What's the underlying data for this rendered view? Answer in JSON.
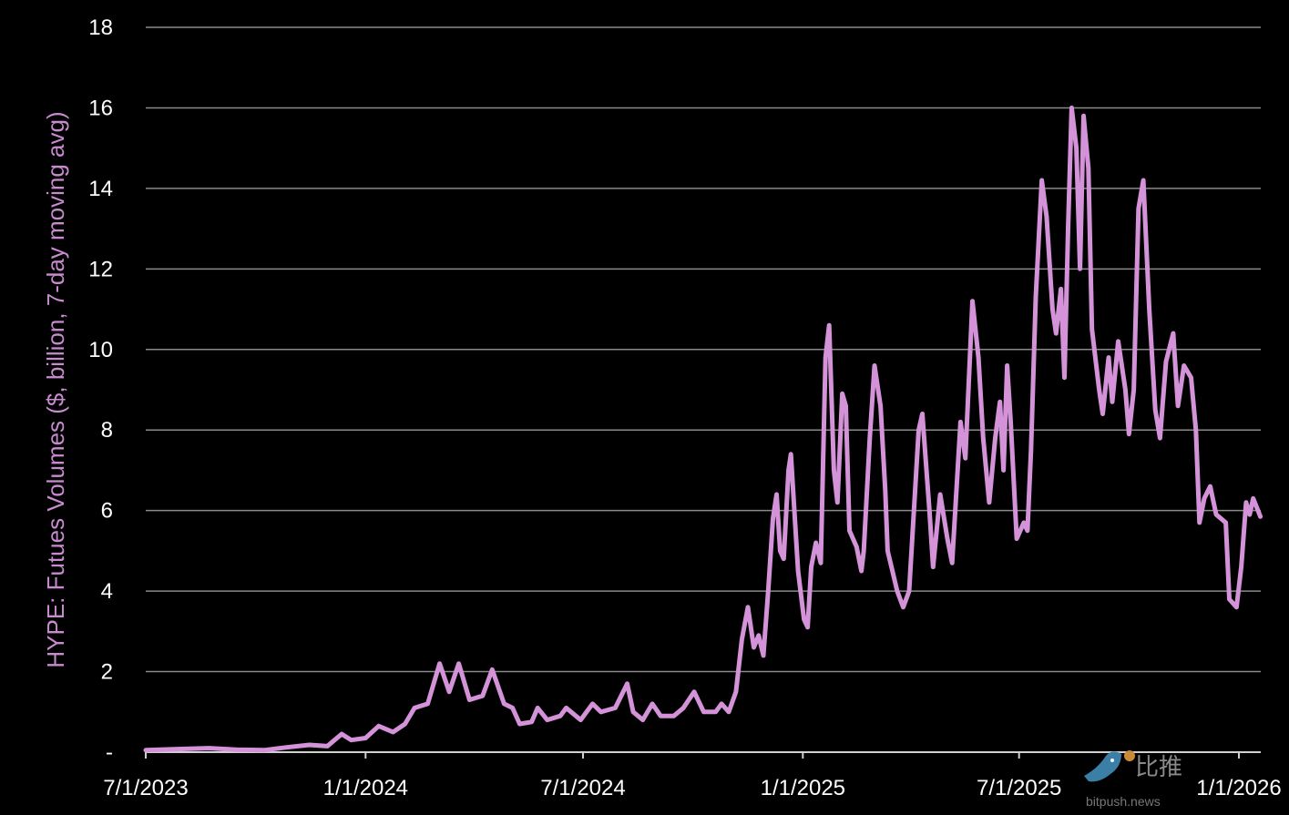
{
  "chart_data": {
    "type": "line",
    "title": "",
    "xlabel": "",
    "ylabel": "HYPE: Futues Volumes ($, billion, 7-day moving avg)",
    "ylim": [
      0,
      18
    ],
    "xlim": [
      "2023-07-01",
      "2026-01-01"
    ],
    "grid": true,
    "yticks": [
      {
        "value": 0,
        "label": "-"
      },
      {
        "value": 2,
        "label": "2"
      },
      {
        "value": 4,
        "label": "4"
      },
      {
        "value": 6,
        "label": "6"
      },
      {
        "value": 8,
        "label": "8"
      },
      {
        "value": 10,
        "label": "10"
      },
      {
        "value": 12,
        "label": "12"
      },
      {
        "value": 14,
        "label": "14"
      },
      {
        "value": 16,
        "label": "16"
      },
      {
        "value": 18,
        "label": "18"
      }
    ],
    "xticks": [
      {
        "value": "2023-07-01",
        "label": "7/1/2023"
      },
      {
        "value": "2024-01-01",
        "label": "1/1/2024"
      },
      {
        "value": "2024-07-01",
        "label": "7/1/2024"
      },
      {
        "value": "2025-01-01",
        "label": "1/1/2025"
      },
      {
        "value": "2025-07-01",
        "label": "7/1/2025"
      },
      {
        "value": "2026-01-01",
        "label": "1/1/2026"
      }
    ],
    "colors": {
      "line": "#d493d8",
      "ylabel": "#c98bcf",
      "grid": "#8a8a8a",
      "background": "#000000",
      "text": "#ffffff"
    },
    "series": [
      {
        "points": [
          [
            "2023-07-01",
            0.05
          ],
          [
            "2023-07-31",
            0.08
          ],
          [
            "2023-08-23",
            0.1
          ],
          [
            "2023-09-15",
            0.06
          ],
          [
            "2023-10-08",
            0.05
          ],
          [
            "2023-10-27",
            0.12
          ],
          [
            "2023-11-15",
            0.18
          ],
          [
            "2023-11-30",
            0.15
          ],
          [
            "2023-12-12",
            0.45
          ],
          [
            "2023-12-20",
            0.3
          ],
          [
            "2024-01-01",
            0.35
          ],
          [
            "2024-01-12",
            0.65
          ],
          [
            "2024-01-24",
            0.5
          ],
          [
            "2024-02-03",
            0.7
          ],
          [
            "2024-02-11",
            1.1
          ],
          [
            "2024-02-22",
            1.2
          ],
          [
            "2024-03-03",
            2.2
          ],
          [
            "2024-03-11",
            1.5
          ],
          [
            "2024-03-19",
            2.2
          ],
          [
            "2024-03-28",
            1.3
          ],
          [
            "2024-04-08",
            1.4
          ],
          [
            "2024-04-16",
            2.05
          ],
          [
            "2024-04-26",
            1.2
          ],
          [
            "2024-05-03",
            1.1
          ],
          [
            "2024-05-09",
            0.7
          ],
          [
            "2024-05-19",
            0.75
          ],
          [
            "2024-05-24",
            1.1
          ],
          [
            "2024-06-01",
            0.8
          ],
          [
            "2024-06-12",
            0.9
          ],
          [
            "2024-06-17",
            1.1
          ],
          [
            "2024-06-29",
            0.8
          ],
          [
            "2024-07-09",
            1.2
          ],
          [
            "2024-07-16",
            1.0
          ],
          [
            "2024-07-28",
            1.1
          ],
          [
            "2024-08-07",
            1.7
          ],
          [
            "2024-08-12",
            1.0
          ],
          [
            "2024-08-20",
            0.8
          ],
          [
            "2024-08-28",
            1.2
          ],
          [
            "2024-09-04",
            0.9
          ],
          [
            "2024-09-15",
            0.9
          ],
          [
            "2024-09-23",
            1.1
          ],
          [
            "2024-10-02",
            1.5
          ],
          [
            "2024-10-10",
            1.0
          ],
          [
            "2024-10-20",
            1.0
          ],
          [
            "2024-10-25",
            1.2
          ],
          [
            "2024-10-31",
            1.0
          ],
          [
            "2024-11-06",
            1.5
          ],
          [
            "2024-11-11",
            2.8
          ],
          [
            "2024-11-16",
            3.6
          ],
          [
            "2024-11-21",
            2.6
          ],
          [
            "2024-11-25",
            2.9
          ],
          [
            "2024-11-29",
            2.4
          ],
          [
            "2024-12-03",
            4.0
          ],
          [
            "2024-12-07",
            5.8
          ],
          [
            "2024-12-10",
            6.4
          ],
          [
            "2024-12-13",
            5.0
          ],
          [
            "2024-12-16",
            4.8
          ],
          [
            "2024-12-20",
            7.0
          ],
          [
            "2024-12-22",
            7.4
          ],
          [
            "2024-12-28",
            4.5
          ],
          [
            "2025-01-02",
            3.3
          ],
          [
            "2025-01-05",
            3.1
          ],
          [
            "2025-01-08",
            4.6
          ],
          [
            "2025-01-12",
            5.2
          ],
          [
            "2025-01-16",
            4.7
          ],
          [
            "2025-01-20",
            9.8
          ],
          [
            "2025-01-23",
            10.6
          ],
          [
            "2025-01-27",
            7.0
          ],
          [
            "2025-01-30",
            6.2
          ],
          [
            "2025-02-03",
            8.9
          ],
          [
            "2025-02-06",
            8.6
          ],
          [
            "2025-02-09",
            5.5
          ],
          [
            "2025-02-15",
            5.1
          ],
          [
            "2025-02-19",
            4.5
          ],
          [
            "2025-02-21",
            5.0
          ],
          [
            "2025-02-26",
            7.8
          ],
          [
            "2025-03-02",
            9.6
          ],
          [
            "2025-03-07",
            8.6
          ],
          [
            "2025-03-11",
            6.5
          ],
          [
            "2025-03-13",
            5.0
          ],
          [
            "2025-03-21",
            4.0
          ],
          [
            "2025-03-26",
            3.6
          ],
          [
            "2025-03-31",
            4.0
          ],
          [
            "2025-04-08",
            8.0
          ],
          [
            "2025-04-11",
            8.4
          ],
          [
            "2025-04-17",
            6.0
          ],
          [
            "2025-04-20",
            4.6
          ],
          [
            "2025-04-26",
            6.4
          ],
          [
            "2025-05-02",
            5.3
          ],
          [
            "2025-05-06",
            4.7
          ],
          [
            "2025-05-13",
            8.2
          ],
          [
            "2025-05-17",
            7.3
          ],
          [
            "2025-05-23",
            11.2
          ],
          [
            "2025-05-28",
            9.8
          ],
          [
            "2025-06-01",
            7.8
          ],
          [
            "2025-06-06",
            6.2
          ],
          [
            "2025-06-11",
            7.8
          ],
          [
            "2025-06-15",
            8.7
          ],
          [
            "2025-06-18",
            7.0
          ],
          [
            "2025-06-21",
            9.6
          ],
          [
            "2025-06-24",
            8.2
          ],
          [
            "2025-06-29",
            5.3
          ],
          [
            "2025-07-05",
            5.7
          ],
          [
            "2025-07-08",
            5.5
          ],
          [
            "2025-07-11",
            7.5
          ],
          [
            "2025-07-15",
            11.3
          ],
          [
            "2025-07-20",
            14.2
          ],
          [
            "2025-07-24",
            13.3
          ],
          [
            "2025-07-29",
            11.0
          ],
          [
            "2025-08-01",
            10.4
          ],
          [
            "2025-08-05",
            11.5
          ],
          [
            "2025-08-08",
            9.3
          ],
          [
            "2025-08-11",
            13.0
          ],
          [
            "2025-08-14",
            16.0
          ],
          [
            "2025-08-18",
            15.0
          ],
          [
            "2025-08-21",
            12.0
          ],
          [
            "2025-08-24",
            15.8
          ],
          [
            "2025-08-28",
            14.5
          ],
          [
            "2025-08-31",
            10.5
          ],
          [
            "2025-09-06",
            9.0
          ],
          [
            "2025-09-09",
            8.4
          ],
          [
            "2025-09-14",
            9.8
          ],
          [
            "2025-09-17",
            8.7
          ],
          [
            "2025-09-22",
            10.2
          ],
          [
            "2025-09-28",
            9.0
          ],
          [
            "2025-10-01",
            7.9
          ],
          [
            "2025-10-05",
            9.0
          ],
          [
            "2025-10-09",
            13.5
          ],
          [
            "2025-10-13",
            14.2
          ],
          [
            "2025-10-18",
            11.0
          ],
          [
            "2025-10-23",
            8.5
          ],
          [
            "2025-10-27",
            7.8
          ],
          [
            "2025-11-01",
            9.7
          ],
          [
            "2025-11-07",
            10.4
          ],
          [
            "2025-11-11",
            8.6
          ],
          [
            "2025-11-16",
            9.6
          ],
          [
            "2025-11-22",
            9.3
          ],
          [
            "2025-11-26",
            8.0
          ],
          [
            "2025-11-29",
            5.7
          ],
          [
            "2025-12-03",
            6.3
          ],
          [
            "2025-12-08",
            6.6
          ],
          [
            "2025-12-13",
            5.9
          ],
          [
            "2025-12-21",
            5.7
          ],
          [
            "2025-12-24",
            3.8
          ],
          [
            "2025-12-30",
            3.6
          ],
          [
            "2026-01-03",
            4.6
          ],
          [
            "2026-01-07",
            6.2
          ],
          [
            "2026-01-10",
            5.9
          ],
          [
            "2026-01-13",
            6.3
          ],
          [
            "2026-01-19",
            5.85
          ]
        ]
      }
    ]
  },
  "watermark": {
    "logo_text": "比推",
    "logo_subtext": "bitpush.news",
    "icon": "bird-icon"
  }
}
